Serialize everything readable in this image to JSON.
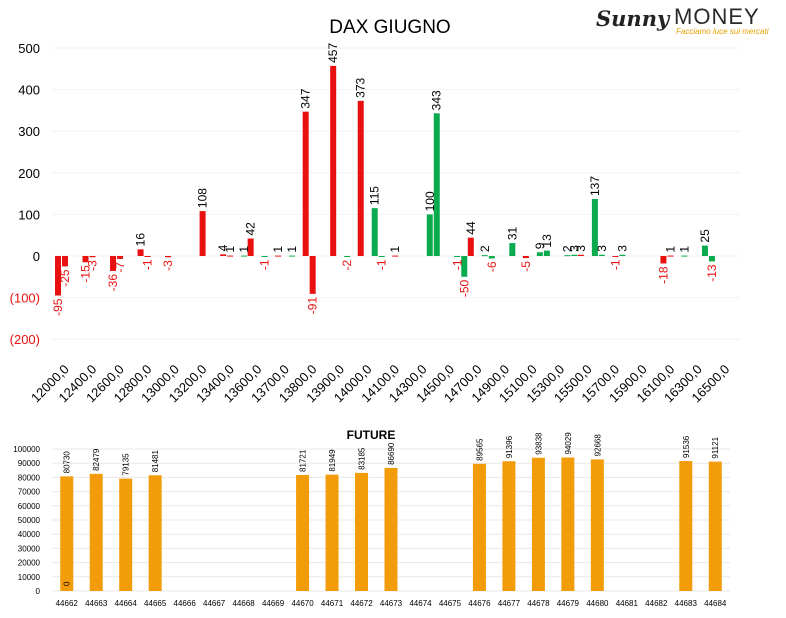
{
  "brand": {
    "sunny": "Sunny",
    "money": "MONEY",
    "tagline": "Facciamo luce sui mercati"
  },
  "colors": {
    "negative": "#e8110f",
    "positive": "#0aaa4f",
    "future": "#f39c0a",
    "neg_label": "#e8110f"
  },
  "chart_data": [
    {
      "type": "bar",
      "title": "DAX GIUGNO",
      "yticks": [
        "500",
        "400",
        "300",
        "200",
        "100",
        "0",
        "(100)",
        "(200)"
      ],
      "ytick_values": [
        500,
        400,
        300,
        200,
        100,
        0,
        -100,
        -200
      ],
      "ylim": [
        -200,
        500
      ],
      "grid": true,
      "categories": [
        "12000,0",
        "12400,0",
        "12600,0",
        "12800,0",
        "13000,0",
        "13200,0",
        "13400,0",
        "13600,0",
        "13700,0",
        "13800,0",
        "13900,0",
        "14000,0",
        "14100,0",
        "14300,0",
        "14500,0",
        "14700,0",
        "14900,0",
        "15100,0",
        "15300,0",
        "15500,0",
        "15700,0",
        "15900,0",
        "16100,0",
        "16300,0",
        "16500,0"
      ],
      "series": [
        {
          "color": "red",
          "values": [
            -95,
            -15,
            -36,
            16,
            -3,
            null,
            4,
            42,
            1,
            347,
            457,
            373,
            null,
            null,
            null,
            44,
            null,
            -5,
            null,
            3,
            null,
            null,
            -18,
            null,
            null
          ]
        },
        {
          "color": "red",
          "values": [
            -25,
            -3,
            -7,
            -1,
            null,
            108,
            1,
            null,
            null,
            -91,
            null,
            null,
            1,
            null,
            null,
            null,
            null,
            null,
            null,
            null,
            -1,
            null,
            1,
            null,
            null
          ]
        },
        {
          "color": "green",
          "values": [
            null,
            null,
            null,
            null,
            null,
            null,
            null,
            -1,
            1,
            null,
            -2,
            115,
            null,
            100,
            -1,
            2,
            31,
            9,
            2,
            137,
            3,
            null,
            null,
            25,
            null
          ]
        },
        {
          "color": "green",
          "values": [
            null,
            null,
            null,
            null,
            null,
            null,
            1,
            null,
            null,
            null,
            null,
            -1,
            null,
            343,
            -50,
            -6,
            null,
            13,
            3,
            3,
            null,
            null,
            1,
            -13,
            null
          ]
        }
      ]
    },
    {
      "type": "bar",
      "title": "FUTURE",
      "yticks": [
        "0",
        "10000",
        "20000",
        "30000",
        "40000",
        "50000",
        "60000",
        "70000",
        "80000",
        "90000",
        "100000"
      ],
      "ylim": [
        0,
        100000
      ],
      "grid": true,
      "categories": [
        "44662",
        "44663",
        "44664",
        "44665",
        "44666",
        "44667",
        "44668",
        "44669",
        "44670",
        "44671",
        "44672",
        "44673",
        "44674",
        "44675",
        "44676",
        "44677",
        "44678",
        "44679",
        "44680",
        "44681",
        "44682",
        "44683",
        "44684"
      ],
      "values": [
        80730,
        82479,
        79135,
        81481,
        null,
        null,
        null,
        null,
        81721,
        81949,
        83185,
        86690,
        null,
        null,
        89565,
        91396,
        93838,
        94029,
        92668,
        null,
        null,
        91536,
        91121
      ],
      "annotations": [
        {
          "category": "44662",
          "label": "0"
        }
      ]
    }
  ]
}
